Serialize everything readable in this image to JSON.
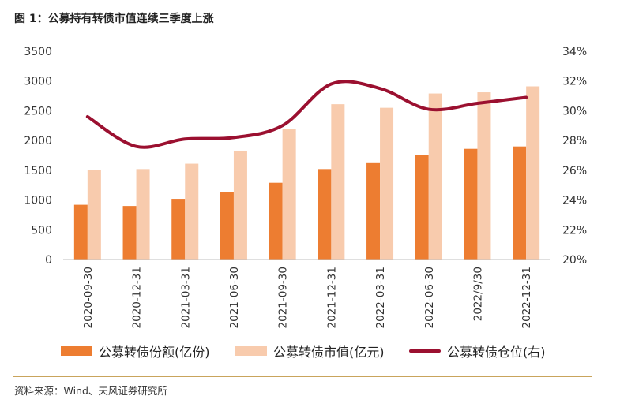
{
  "title": "图 1：公募持有转债市值连续三季度上涨",
  "source": "资料来源：Wind、天风证券研究所",
  "colors": {
    "amount": "#ed7d31",
    "value": "#f8cbad",
    "position": "#9b1030",
    "rule": "#c9a45c",
    "axis": "#bfbfbf"
  },
  "chart_data": {
    "type": "bar",
    "categories": [
      "2020-09-30",
      "2020-12-31",
      "2021-03-31",
      "2021-06-30",
      "2021-09-30",
      "2021-12-31",
      "2022-03-31",
      "2022-06-30",
      "2022/9/30",
      "2022-12-31"
    ],
    "series": [
      {
        "name": "公募转债份额(亿份)",
        "type": "bar",
        "axis": "left",
        "values": [
          920,
          900,
          1020,
          1130,
          1290,
          1520,
          1620,
          1750,
          1860,
          1900
        ]
      },
      {
        "name": "公募转债市值(亿元)",
        "type": "bar",
        "axis": "left",
        "values": [
          1500,
          1520,
          1610,
          1830,
          2190,
          2610,
          2550,
          2790,
          2810,
          2910
        ]
      },
      {
        "name": "公募转债仓位(右)",
        "type": "line",
        "axis": "right",
        "values": [
          29.6,
          27.6,
          28.1,
          28.2,
          29.0,
          31.8,
          31.5,
          30.1,
          30.5,
          30.9
        ]
      }
    ],
    "ylim_left": [
      0,
      3500
    ],
    "yticks_left": [
      "3500",
      "3000",
      "2500",
      "2000",
      "1500",
      "1000",
      "500",
      "0"
    ],
    "ylim_right": [
      20,
      34
    ],
    "yticks_right": [
      "34%",
      "32%",
      "30%",
      "28%",
      "26%",
      "24%",
      "22%",
      "20%"
    ],
    "grid": false,
    "legend": "bottom"
  }
}
